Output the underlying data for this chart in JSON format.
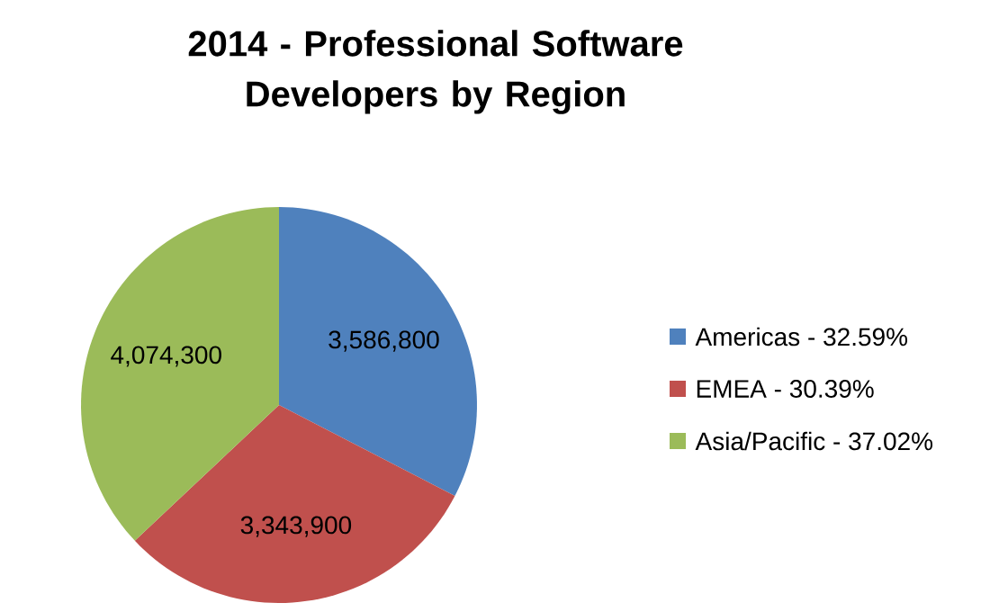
{
  "chart_data": {
    "type": "pie",
    "title": "2014 - Professional Software Developers by Region",
    "categories": [
      "Americas - 32.59%",
      "EMEA - 30.39%",
      "Asia/Pacific - 37.02%"
    ],
    "values": [
      3586800,
      3343900,
      4074300
    ],
    "value_labels": [
      "3,586,800",
      "3,343,900",
      "4,074,300"
    ],
    "colors": [
      "#4f81bd",
      "#c0504d",
      "#9bbb59"
    ],
    "legend": "right"
  }
}
